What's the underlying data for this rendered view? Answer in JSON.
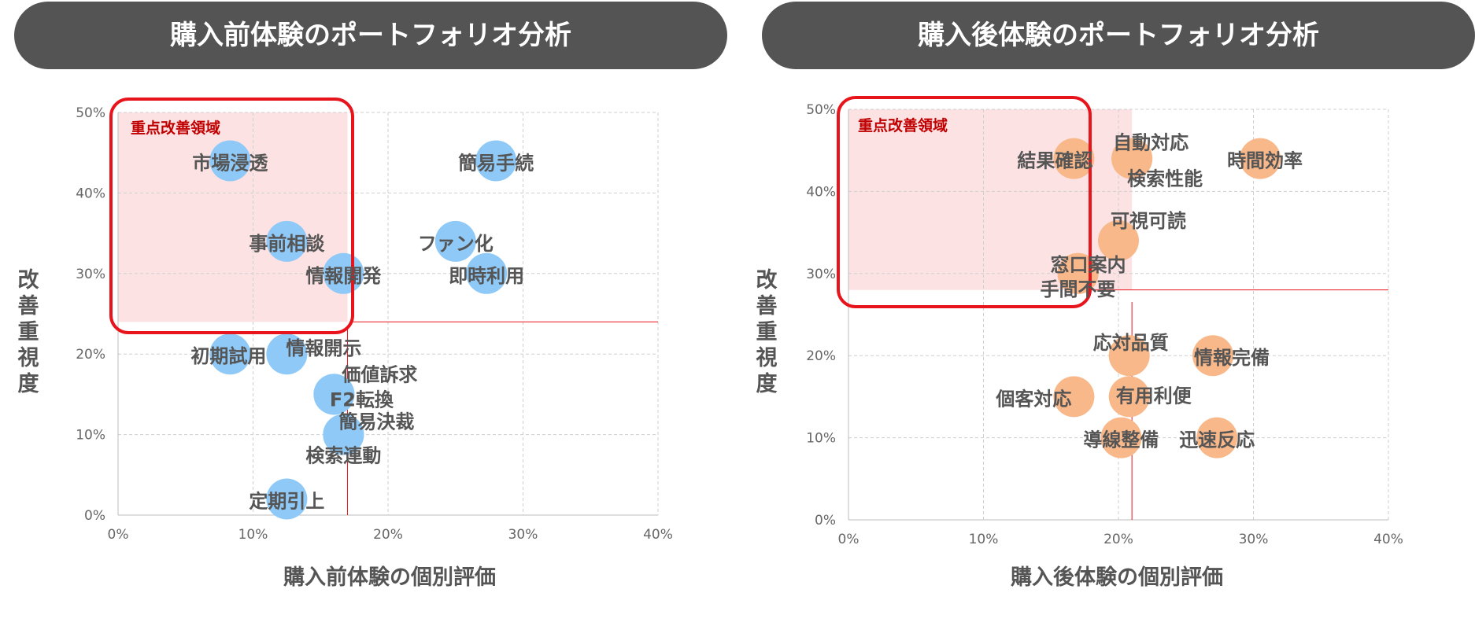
{
  "chart_data": [
    {
      "type": "scatter",
      "title": "購入前体験のポートフォリオ分析",
      "xlabel": "購入前体験の個別評価",
      "ylabel": "改善重視度",
      "xlim": [
        0,
        40
      ],
      "ylim": [
        0,
        50
      ],
      "x_ticks": [
        "0%",
        "10%",
        "20%",
        "30%",
        "40%"
      ],
      "y_ticks": [
        "0%",
        "10%",
        "20%",
        "30%",
        "40%",
        "50%"
      ],
      "grid": true,
      "bubble_color": "#8ec9f7",
      "reference_lines": {
        "x": 17,
        "y": 24
      },
      "highlight_region": {
        "label": "重点改善領域",
        "x_range": [
          0,
          17
        ],
        "y_range": [
          24,
          50
        ],
        "fill": "#fde2e4",
        "border": "#e8141c"
      },
      "points": [
        {
          "label": "市場浸透",
          "x": 8.3,
          "y": 44
        },
        {
          "label": "簡易手続",
          "x": 28,
          "y": 44
        },
        {
          "label": "事前相談",
          "x": 12.5,
          "y": 34
        },
        {
          "label": "ファン化",
          "x": 25,
          "y": 34
        },
        {
          "label": "情報開発",
          "x": 16.7,
          "y": 30
        },
        {
          "label": "即時利用",
          "x": 27.3,
          "y": 30
        },
        {
          "label": "初期試用",
          "x": 8.3,
          "y": 20
        },
        {
          "label": "情報開示",
          "x": 12.5,
          "y": 20
        },
        {
          "label": "価値訴求",
          "x": 16,
          "y": 15
        },
        {
          "label": "F2転換",
          "x": 16,
          "y": 15
        },
        {
          "label": "簡易決裁",
          "x": 16.7,
          "y": 10
        },
        {
          "label": "検索連動",
          "x": 16.7,
          "y": 10
        },
        {
          "label": "定期引上",
          "x": 12.5,
          "y": 2
        }
      ]
    },
    {
      "type": "scatter",
      "title": "購入後体験のポートフォリオ分析",
      "xlabel": "購入後体験の個別評価",
      "ylabel": "改善重視度",
      "xlim": [
        0,
        40
      ],
      "ylim": [
        0,
        50
      ],
      "x_ticks": [
        "0%",
        "10%",
        "20%",
        "30%",
        "40%"
      ],
      "y_ticks": [
        "0%",
        "10%",
        "20%",
        "30%",
        "40%",
        "50%"
      ],
      "grid": true,
      "bubble_color": "#f9b88a",
      "reference_lines": {
        "x": 21,
        "y": 28
      },
      "highlight_region": {
        "label": "重点改善領域",
        "x_range": [
          0,
          21
        ],
        "y_range": [
          28,
          50
        ],
        "fill": "#fde2e4",
        "border": "#e8141c"
      },
      "points": [
        {
          "label": "結果確認",
          "x": 16.7,
          "y": 44
        },
        {
          "label": "自動対応",
          "x": 21,
          "y": 44
        },
        {
          "label": "検索性能",
          "x": 21,
          "y": 44
        },
        {
          "label": "時間効率",
          "x": 30.5,
          "y": 44
        },
        {
          "label": "可視可読",
          "x": 20,
          "y": 34
        },
        {
          "label": "窓口案内",
          "x": 17,
          "y": 30
        },
        {
          "label": "手間不要",
          "x": 17,
          "y": 30
        },
        {
          "label": "応対品質",
          "x": 20.8,
          "y": 20
        },
        {
          "label": "情報完備",
          "x": 27,
          "y": 20
        },
        {
          "label": "個客対応",
          "x": 16.7,
          "y": 15
        },
        {
          "label": "有用利便",
          "x": 20.8,
          "y": 15
        },
        {
          "label": "導線整備",
          "x": 20.2,
          "y": 10
        },
        {
          "label": "迅速反応",
          "x": 27.3,
          "y": 10
        }
      ]
    }
  ]
}
